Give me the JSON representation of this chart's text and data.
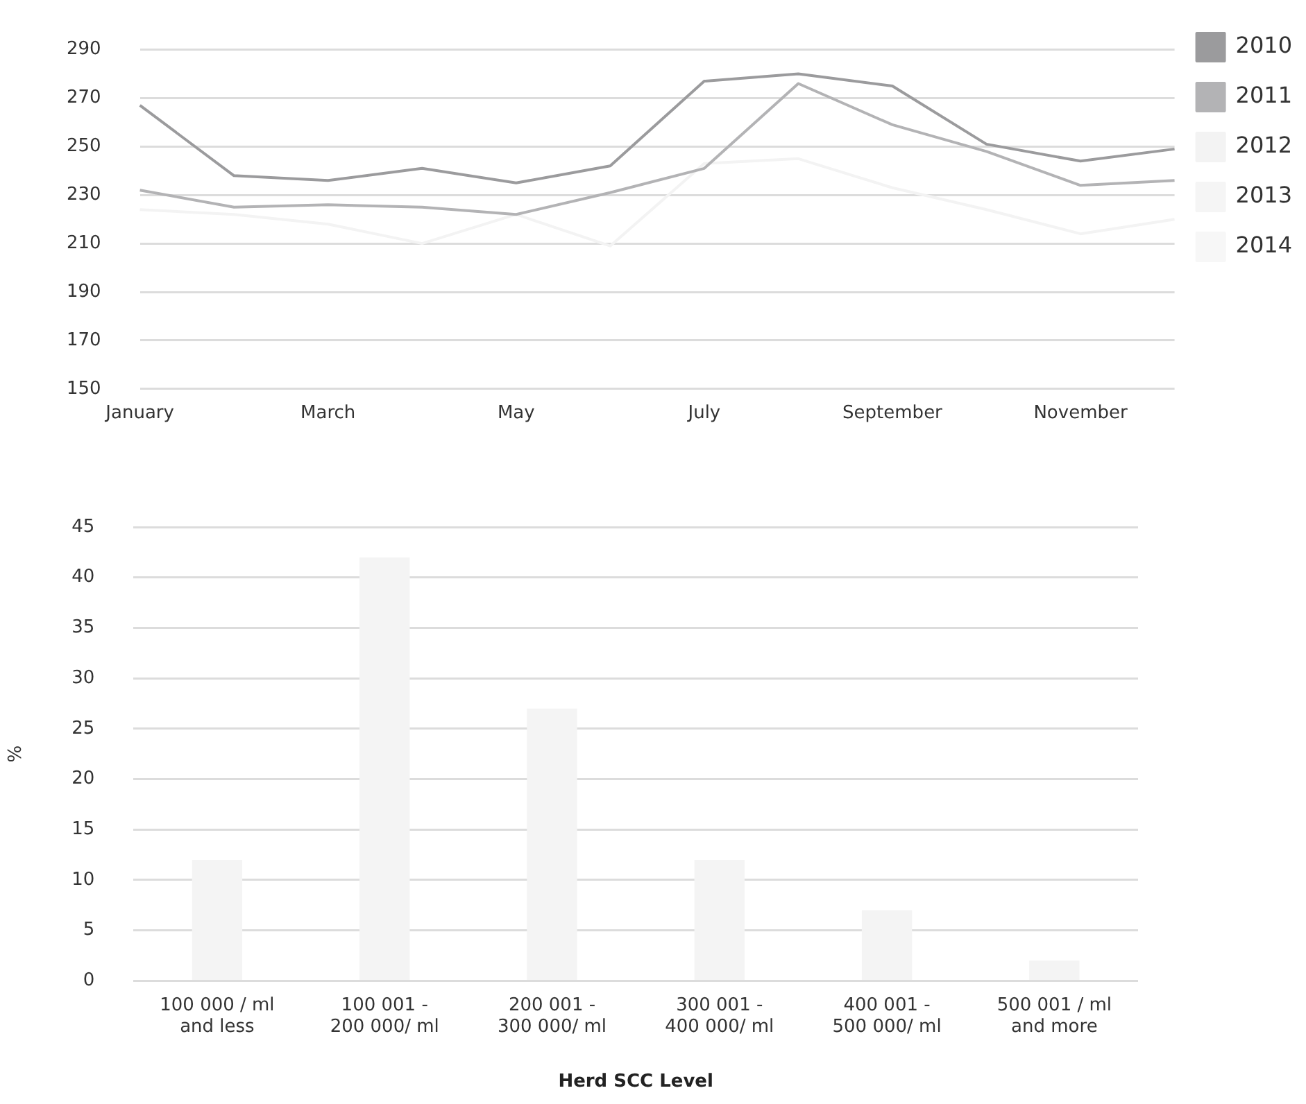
{
  "chart_data": [
    {
      "type": "line",
      "categories": [
        "January",
        null,
        "March",
        null,
        "May",
        null,
        "July",
        null,
        "September",
        null,
        "November",
        null
      ],
      "series": [
        {
          "name": "2010",
          "color": "#9b9b9d",
          "values": [
            267,
            238,
            236,
            241,
            235,
            242,
            277,
            280,
            275,
            251,
            244,
            249
          ]
        },
        {
          "name": "2011",
          "color": "#b3b3b5",
          "values": [
            232,
            225,
            226,
            225,
            222,
            231,
            241,
            276,
            259,
            248,
            234,
            236
          ]
        },
        {
          "name": "2012",
          "color": "#f3f3f3",
          "values": [
            224,
            222,
            218,
            210,
            222,
            209,
            243,
            245,
            233,
            224,
            214,
            220
          ]
        },
        {
          "name": "2013",
          "color": "#f5f5f5",
          "values": [
            null,
            null,
            null,
            null,
            null,
            null,
            null,
            null,
            null,
            null,
            null,
            null
          ]
        },
        {
          "name": "2014",
          "color": "#f7f7f7",
          "values": [
            null,
            null,
            null,
            null,
            null,
            null,
            null,
            null,
            null,
            null,
            null,
            null
          ]
        }
      ],
      "ylim": [
        150,
        290
      ],
      "yticks": [
        150,
        170,
        190,
        210,
        230,
        250,
        270,
        290
      ],
      "grid": "y",
      "legend": "right",
      "marker": "none"
    },
    {
      "type": "bar",
      "categories": [
        "100 000 / ml and less",
        "100 001 - 200 000/ ml",
        "200 001 - 300 000/ ml",
        "300 001 - 400 000/ ml",
        "400 001 - 500 000/ ml",
        "500 001 / ml and more"
      ],
      "values": [
        12,
        42,
        27,
        12,
        7,
        2
      ],
      "color": "#f4f4f4",
      "xlabel": "Herd SCC Level",
      "ylabel": "%",
      "ylim": [
        0,
        45
      ],
      "yticks": [
        0,
        5,
        10,
        15,
        20,
        25,
        30,
        35,
        40,
        45
      ],
      "grid": "y"
    }
  ]
}
